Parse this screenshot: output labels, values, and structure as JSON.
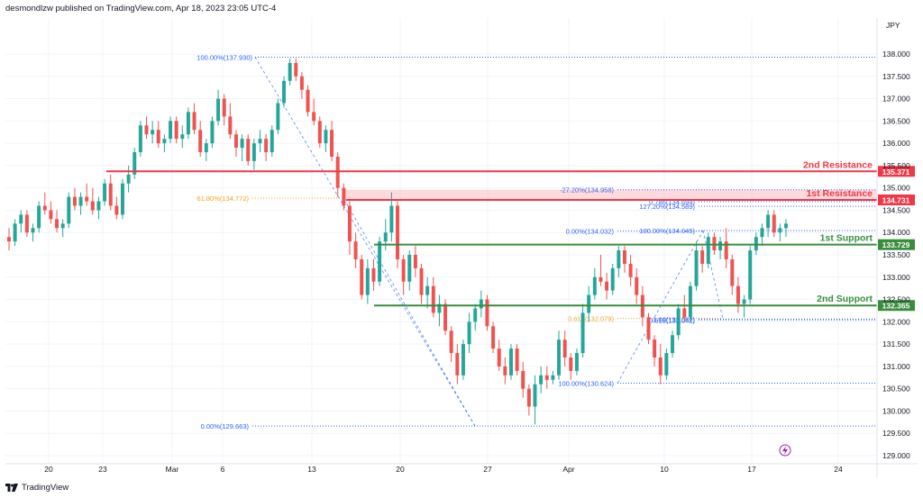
{
  "header": {
    "publisher_line": "desmondlzw published on TradingView.com, Apr 18, 2023 23:05 UTC-4"
  },
  "footer": {
    "brand": "TradingView"
  },
  "colors": {
    "up": "#26a69a",
    "down": "#ef5350",
    "resistance": "#f23645",
    "support": "#388e3c",
    "fib_blue": "#2962ff",
    "fib_orange": "#f7a21b",
    "axis_text": "#131722",
    "grid": "#f0f3fa"
  },
  "chart_data": {
    "type": "candlestick",
    "symbol_currency": "JPY",
    "y_axis": {
      "ticks": [
        "138.000",
        "137.500",
        "137.000",
        "136.500",
        "136.000",
        "135.500",
        "135.000",
        "134.500",
        "134.000",
        "133.500",
        "133.000",
        "132.500",
        "132.000",
        "131.500",
        "131.000",
        "130.500",
        "130.000",
        "129.500",
        "129.000"
      ]
    },
    "x_axis": {
      "ticks": [
        "20",
        "23",
        "Mar",
        "6",
        "13",
        "20",
        "27",
        "Apr",
        "10",
        "17",
        "24"
      ]
    },
    "levels": [
      {
        "name": "2nd Resistance",
        "value": "135.371",
        "price": 135.371,
        "kind": "resistance"
      },
      {
        "name": "1st Resistance",
        "value": "134.731",
        "price": 134.731,
        "kind": "resistance"
      },
      {
        "name": "1st Support",
        "value": "133.729",
        "price": 133.729,
        "kind": "support"
      },
      {
        "name": "2nd Support",
        "value": "132.365",
        "price": 132.365,
        "kind": "support"
      }
    ],
    "fib_labels": [
      {
        "text": "100.00%(137.930)",
        "price": 137.93,
        "color": "blue"
      },
      {
        "text": "61.80%(134.772)",
        "price": 134.772,
        "color": "orange"
      },
      {
        "text": "0.00%(129.663)",
        "price": 129.663,
        "color": "blue"
      },
      {
        "text": "-27.20%(134.958)",
        "price": 134.958,
        "color": "blue"
      },
      {
        "text": "0.786(134.694)",
        "price": 134.694,
        "color": "blue"
      },
      {
        "text": "127.20%(134.589)",
        "price": 134.589,
        "color": "blue"
      },
      {
        "text": "0.00%(134.032)",
        "price": 134.032,
        "color": "blue"
      },
      {
        "text": "100.00%(134.045)",
        "price": 134.045,
        "color": "blue"
      },
      {
        "text": "0.618(132.079)",
        "price": 132.079,
        "color": "orange"
      },
      {
        "text": "1.00(132.062)",
        "price": 132.062,
        "color": "blue"
      },
      {
        "text": "0.618(132.042)",
        "price": 132.042,
        "color": "blue"
      },
      {
        "text": "100.00%(130.624)",
        "price": 130.624,
        "color": "blue"
      }
    ],
    "candles": [
      [
        133.9,
        134.1,
        133.6,
        133.8
      ],
      [
        133.8,
        134.3,
        133.7,
        134.2
      ],
      [
        134.2,
        134.5,
        134.0,
        134.4
      ],
      [
        134.4,
        134.5,
        133.9,
        134.0
      ],
      [
        134.0,
        134.2,
        133.8,
        134.1
      ],
      [
        134.1,
        134.7,
        134.0,
        134.6
      ],
      [
        134.6,
        134.9,
        134.4,
        134.5
      ],
      [
        134.5,
        134.7,
        134.2,
        134.3
      ],
      [
        134.3,
        134.5,
        134.0,
        134.1
      ],
      [
        134.1,
        134.3,
        133.9,
        134.2
      ],
      [
        134.2,
        134.9,
        134.1,
        134.8
      ],
      [
        134.8,
        135.0,
        134.5,
        134.6
      ],
      [
        134.6,
        134.9,
        134.4,
        134.8
      ],
      [
        134.8,
        135.1,
        134.6,
        134.7
      ],
      [
        134.7,
        135.0,
        134.4,
        134.5
      ],
      [
        134.5,
        134.8,
        134.3,
        134.7
      ],
      [
        134.7,
        135.2,
        134.6,
        135.1
      ],
      [
        135.1,
        135.3,
        134.5,
        134.6
      ],
      [
        134.6,
        134.8,
        134.3,
        134.4
      ],
      [
        134.4,
        135.2,
        134.3,
        135.1
      ],
      [
        135.1,
        135.5,
        134.9,
        135.3
      ],
      [
        135.3,
        135.9,
        135.2,
        135.8
      ],
      [
        135.8,
        136.5,
        135.7,
        136.4
      ],
      [
        136.4,
        136.6,
        136.1,
        136.2
      ],
      [
        136.2,
        136.5,
        136.0,
        136.3
      ],
      [
        136.3,
        136.5,
        135.9,
        136.0
      ],
      [
        136.0,
        136.2,
        135.8,
        136.1
      ],
      [
        136.1,
        136.6,
        136.0,
        136.5
      ],
      [
        136.5,
        136.6,
        136.0,
        136.1
      ],
      [
        136.1,
        136.4,
        135.9,
        136.2
      ],
      [
        136.2,
        136.8,
        136.1,
        136.7
      ],
      [
        136.7,
        136.9,
        136.2,
        136.3
      ],
      [
        136.3,
        136.5,
        135.7,
        135.8
      ],
      [
        135.8,
        136.1,
        135.6,
        136.0
      ],
      [
        136.0,
        136.6,
        135.9,
        136.5
      ],
      [
        136.5,
        137.2,
        136.4,
        137.0
      ],
      [
        137.0,
        137.1,
        136.4,
        136.6
      ],
      [
        136.6,
        136.9,
        136.1,
        136.2
      ],
      [
        136.2,
        136.3,
        135.7,
        135.9
      ],
      [
        135.9,
        136.2,
        135.6,
        136.1
      ],
      [
        136.1,
        136.2,
        135.5,
        135.6
      ],
      [
        135.6,
        136.1,
        135.4,
        136.0
      ],
      [
        136.0,
        136.3,
        135.8,
        136.1
      ],
      [
        136.1,
        136.2,
        135.6,
        135.8
      ],
      [
        135.8,
        136.4,
        135.7,
        136.3
      ],
      [
        136.3,
        137.0,
        136.2,
        136.9
      ],
      [
        136.9,
        137.5,
        136.8,
        137.4
      ],
      [
        137.4,
        137.9,
        137.3,
        137.8
      ],
      [
        137.8,
        137.9,
        137.4,
        137.5
      ],
      [
        137.5,
        137.6,
        137.0,
        137.2
      ],
      [
        137.2,
        137.3,
        136.6,
        136.7
      ],
      [
        136.7,
        137.0,
        136.4,
        136.5
      ],
      [
        136.5,
        136.6,
        135.9,
        136.0
      ],
      [
        136.0,
        136.4,
        135.8,
        136.3
      ],
      [
        136.3,
        136.5,
        135.6,
        135.7
      ],
      [
        135.7,
        135.8,
        134.8,
        135.0
      ],
      [
        135.0,
        135.1,
        134.5,
        134.6
      ],
      [
        134.6,
        134.7,
        133.5,
        133.8
      ],
      [
        133.8,
        134.0,
        133.2,
        133.4
      ],
      [
        133.4,
        133.5,
        132.5,
        132.6
      ],
      [
        132.6,
        133.4,
        132.4,
        133.2
      ],
      [
        133.2,
        133.4,
        132.7,
        132.9
      ],
      [
        132.9,
        133.9,
        132.8,
        133.8
      ],
      [
        133.8,
        134.3,
        133.6,
        134.0
      ],
      [
        134.0,
        134.9,
        133.8,
        134.6
      ],
      [
        134.6,
        134.7,
        133.2,
        133.4
      ],
      [
        133.4,
        133.5,
        132.6,
        132.9
      ],
      [
        132.9,
        133.6,
        132.7,
        133.5
      ],
      [
        133.5,
        133.7,
        133.0,
        133.2
      ],
      [
        133.2,
        133.3,
        132.4,
        132.6
      ],
      [
        132.6,
        133.0,
        132.3,
        132.8
      ],
      [
        132.8,
        133.0,
        132.1,
        132.2
      ],
      [
        132.2,
        132.6,
        131.9,
        132.4
      ],
      [
        132.4,
        132.5,
        131.7,
        131.8
      ],
      [
        131.8,
        131.9,
        131.1,
        131.3
      ],
      [
        131.3,
        131.5,
        130.6,
        130.8
      ],
      [
        130.8,
        131.6,
        130.7,
        131.5
      ],
      [
        131.5,
        132.2,
        131.3,
        132.0
      ],
      [
        132.0,
        132.4,
        131.8,
        132.3
      ],
      [
        132.3,
        132.7,
        132.1,
        132.5
      ],
      [
        132.5,
        132.6,
        131.8,
        131.9
      ],
      [
        131.9,
        132.0,
        131.3,
        131.4
      ],
      [
        131.4,
        131.6,
        130.9,
        131.0
      ],
      [
        131.0,
        131.2,
        130.6,
        130.8
      ],
      [
        130.8,
        131.5,
        130.7,
        131.4
      ],
      [
        131.4,
        131.5,
        130.8,
        130.9
      ],
      [
        130.9,
        131.1,
        130.3,
        130.5
      ],
      [
        130.5,
        130.6,
        129.9,
        130.1
      ],
      [
        130.1,
        130.8,
        129.7,
        130.6
      ],
      [
        130.6,
        131.0,
        130.4,
        130.8
      ],
      [
        130.8,
        131.0,
        130.5,
        130.7
      ],
      [
        130.7,
        130.9,
        130.6,
        130.8
      ],
      [
        130.8,
        131.8,
        130.7,
        131.6
      ],
      [
        131.6,
        131.8,
        131.0,
        131.2
      ],
      [
        131.2,
        131.3,
        130.7,
        130.9
      ],
      [
        130.9,
        131.4,
        130.8,
        131.3
      ],
      [
        131.3,
        132.4,
        131.2,
        132.2
      ],
      [
        132.2,
        132.8,
        132.0,
        132.6
      ],
      [
        132.6,
        133.2,
        132.5,
        133.0
      ],
      [
        133.0,
        133.5,
        132.8,
        132.9
      ],
      [
        132.9,
        133.1,
        132.5,
        132.7
      ],
      [
        132.7,
        133.3,
        132.6,
        133.2
      ],
      [
        133.2,
        133.7,
        133.0,
        133.6
      ],
      [
        133.6,
        133.7,
        133.1,
        133.3
      ],
      [
        133.3,
        133.5,
        132.8,
        133.0
      ],
      [
        133.0,
        133.2,
        132.4,
        132.6
      ],
      [
        132.6,
        132.8,
        131.9,
        132.1
      ],
      [
        132.1,
        132.2,
        131.5,
        131.6
      ],
      [
        131.6,
        131.7,
        131.0,
        131.2
      ],
      [
        131.2,
        131.5,
        130.6,
        130.8
      ],
      [
        130.8,
        131.4,
        130.7,
        131.3
      ],
      [
        131.3,
        131.8,
        131.2,
        131.7
      ],
      [
        131.7,
        132.4,
        131.6,
        132.3
      ],
      [
        132.3,
        132.6,
        132.0,
        132.1
      ],
      [
        132.1,
        132.9,
        132.0,
        132.8
      ],
      [
        132.8,
        133.8,
        132.7,
        133.6
      ],
      [
        133.6,
        133.7,
        133.1,
        133.3
      ],
      [
        133.3,
        134.0,
        133.2,
        133.9
      ],
      [
        133.9,
        134.0,
        133.5,
        133.6
      ],
      [
        133.6,
        133.9,
        133.4,
        133.8
      ],
      [
        133.8,
        134.1,
        133.2,
        133.4
      ],
      [
        133.4,
        133.5,
        132.6,
        132.8
      ],
      [
        132.8,
        133.0,
        132.2,
        132.4
      ],
      [
        132.4,
        132.6,
        132.1,
        132.5
      ],
      [
        132.5,
        133.7,
        132.4,
        133.6
      ],
      [
        133.6,
        134.0,
        133.5,
        133.9
      ],
      [
        133.9,
        134.2,
        133.7,
        134.1
      ],
      [
        134.1,
        134.5,
        133.9,
        134.4
      ],
      [
        134.4,
        134.5,
        133.9,
        134.0
      ],
      [
        134.0,
        134.2,
        133.8,
        134.1
      ],
      [
        134.1,
        134.3,
        133.9,
        134.2
      ]
    ]
  }
}
